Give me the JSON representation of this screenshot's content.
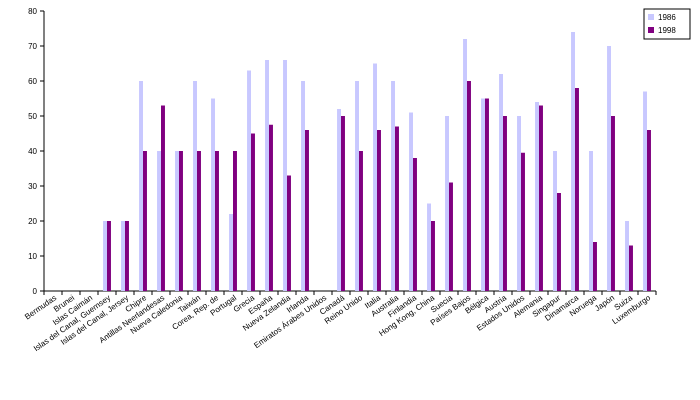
{
  "chart_data": {
    "type": "bar",
    "title": "",
    "xlabel": "",
    "ylabel": "",
    "ylim": [
      0,
      80
    ],
    "yticks": [
      0,
      10,
      20,
      30,
      40,
      50,
      60,
      70,
      80
    ],
    "grid": false,
    "legend_position": "top-right",
    "categories": [
      "Bermudas",
      "Brunei",
      "Islas Caimán",
      "Islas del Canal, Guernsey",
      "Islas del Canal, Jersey",
      "Chipre",
      "Antillas Neerlandesas",
      "Nueva Caledonia",
      "Taiwán",
      "Corea, Rep. de",
      "Portugal",
      "Grecia",
      "España",
      "Nueva Zelandia",
      "Irlanda",
      "Emiratos Árabes Unidos",
      "Canadá",
      "Reino Unido",
      "Italia",
      "Australia",
      "Finlandia",
      "Hong Kong, China",
      "Suecia",
      "Países Bajos",
      "Bélgica",
      "Austria",
      "Estados Unidos",
      "Alemania",
      "Singapur",
      "Dinamarca",
      "Noruega",
      "Japón",
      "Suiza",
      "Luxemburgo"
    ],
    "series": [
      {
        "name": "1986",
        "color": "#c8c8ff",
        "values": [
          0,
          0,
          0,
          20,
          20,
          60,
          40,
          40,
          60,
          55,
          22,
          63,
          66,
          66,
          60,
          0,
          52,
          60,
          65,
          60,
          51,
          25,
          50,
          72,
          55,
          62,
          50,
          54,
          40,
          74,
          40,
          70,
          20,
          57
        ]
      },
      {
        "name": "1998",
        "color": "#800080",
        "values": [
          0,
          0,
          0,
          20,
          20,
          40,
          53,
          40,
          40,
          40,
          40,
          45,
          47.5,
          33,
          46,
          0,
          50,
          40,
          46,
          47,
          38,
          20,
          31,
          60,
          55,
          50,
          39.5,
          53,
          28,
          58,
          14,
          50,
          13,
          46
        ]
      }
    ]
  }
}
